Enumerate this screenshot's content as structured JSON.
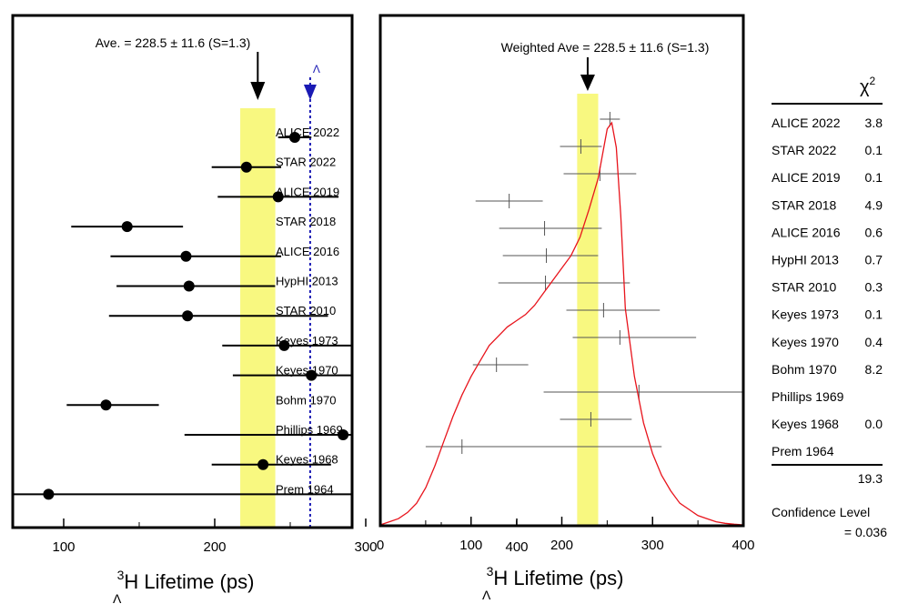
{
  "chart_data": [
    {
      "type": "scatter",
      "annotation": "Ave. = 228.5 ± 11.6 (S=1.3)",
      "marker_label": "Λ",
      "average": 228.5,
      "average_err": 11.6,
      "free_lifetime": 263.2,
      "xlim": [
        20,
        400
      ],
      "x_ticks": [
        100,
        200,
        300,
        400
      ],
      "xlabel_sup": "3",
      "xlabel_sub": "Λ",
      "xlabel_main": "H Lifetime (ps)",
      "points": [
        {
          "label": "ALICE 2022",
          "value": 253,
          "err_lo": 11,
          "err_hi": 11
        },
        {
          "label": "STAR 2022",
          "value": 221,
          "err_lo": 23,
          "err_hi": 23
        },
        {
          "label": "ALICE 2019",
          "value": 242,
          "err_lo": 40,
          "err_hi": 40
        },
        {
          "label": "STAR 2018",
          "value": 142,
          "err_lo": 37,
          "err_hi": 37
        },
        {
          "label": "ALICE 2016",
          "value": 181,
          "err_lo": 50,
          "err_hi": 63
        },
        {
          "label": "HypHI 2013",
          "value": 183,
          "err_lo": 48,
          "err_hi": 57
        },
        {
          "label": "STAR 2010",
          "value": 182,
          "err_lo": 52,
          "err_hi": 93
        },
        {
          "label": "Keyes 1973",
          "value": 246,
          "err_lo": 41,
          "err_hi": 62
        },
        {
          "label": "Keyes 1970",
          "value": 264,
          "err_lo": 52,
          "err_hi": 84
        },
        {
          "label": "Bohm 1970",
          "value": 128,
          "err_lo": 26,
          "err_hi": 35
        },
        {
          "label": "Phillips 1969",
          "value": 285,
          "err_lo": 105,
          "err_hi": 127
        },
        {
          "label": "Keyes 1968",
          "value": 232,
          "err_lo": 34,
          "err_hi": 45
        },
        {
          "label": "Prem 1964",
          "value": 90,
          "err_lo": 40,
          "err_hi": 220
        }
      ]
    },
    {
      "type": "line",
      "annotation": "Weighted Ave = 228.5 ± 11.6 (S=1.3)",
      "xlim": [
        0,
        400
      ],
      "x_ticks": [
        0,
        100,
        200,
        300,
        400
      ],
      "xlabel_sup": "3",
      "xlabel_sub": "Λ",
      "xlabel_main": "H Lifetime (ps)",
      "ideogram": {
        "x": [
          0,
          10,
          20,
          30,
          40,
          50,
          60,
          70,
          80,
          90,
          100,
          110,
          120,
          130,
          140,
          150,
          160,
          170,
          180,
          190,
          200,
          210,
          220,
          230,
          240,
          245,
          250,
          255,
          260,
          265,
          270,
          280,
          290,
          300,
          310,
          320,
          330,
          340,
          350,
          360,
          370,
          380,
          390,
          400
        ],
        "y": [
          0.0,
          0.01,
          0.02,
          0.04,
          0.07,
          0.12,
          0.19,
          0.27,
          0.35,
          0.42,
          0.48,
          0.53,
          0.58,
          0.61,
          0.64,
          0.66,
          0.68,
          0.71,
          0.75,
          0.79,
          0.83,
          0.87,
          0.93,
          1.02,
          1.12,
          1.2,
          1.28,
          1.3,
          1.22,
          1.0,
          0.7,
          0.48,
          0.33,
          0.23,
          0.16,
          0.11,
          0.07,
          0.05,
          0.03,
          0.02,
          0.01,
          0.005,
          0.002,
          0.0
        ]
      },
      "error_bars": [
        {
          "value": 253,
          "err_lo": 11,
          "err_hi": 11
        },
        {
          "value": 221,
          "err_lo": 23,
          "err_hi": 23
        },
        {
          "value": 242,
          "err_lo": 40,
          "err_hi": 40
        },
        {
          "value": 142,
          "err_lo": 37,
          "err_hi": 37
        },
        {
          "value": 181,
          "err_lo": 50,
          "err_hi": 63
        },
        {
          "value": 183,
          "err_lo": 48,
          "err_hi": 57
        },
        {
          "value": 182,
          "err_lo": 52,
          "err_hi": 93
        },
        {
          "value": 246,
          "err_lo": 41,
          "err_hi": 62
        },
        {
          "value": 264,
          "err_lo": 52,
          "err_hi": 84
        },
        {
          "value": 128,
          "err_lo": 26,
          "err_hi": 35
        },
        {
          "value": 285,
          "err_lo": 105,
          "err_hi": 127
        },
        {
          "value": 232,
          "err_lo": 34,
          "err_hi": 45
        },
        {
          "value": 90,
          "err_lo": 40,
          "err_hi": 220
        }
      ]
    },
    {
      "type": "table",
      "header": "χ",
      "header_sup": "2",
      "rows": [
        {
          "label": "ALICE 2022",
          "chi2": "3.8"
        },
        {
          "label": "STAR 2022",
          "chi2": "0.1"
        },
        {
          "label": "ALICE 2019",
          "chi2": "0.1"
        },
        {
          "label": "STAR 2018",
          "chi2": "4.9"
        },
        {
          "label": "ALICE 2016",
          "chi2": "0.6"
        },
        {
          "label": "HypHI 2013",
          "chi2": "0.7"
        },
        {
          "label": "STAR 2010",
          "chi2": "0.3"
        },
        {
          "label": "Keyes 1973",
          "chi2": "0.1"
        },
        {
          "label": "Keyes 1970",
          "chi2": "0.4"
        },
        {
          "label": "Bohm 1970",
          "chi2": "8.2"
        },
        {
          "label": "Phillips 1969",
          "chi2": ""
        },
        {
          "label": "Keyes 1968",
          "chi2": "0.0"
        },
        {
          "label": "Prem 1964",
          "chi2": ""
        }
      ],
      "total": "19.3",
      "confidence_label": "Confidence Level",
      "confidence_value": "= 0.036"
    }
  ],
  "colors": {
    "band": "#f8f880",
    "curve": "#e8141c",
    "dashed": "#1a1ab4",
    "ink": "#000000",
    "thin": "#555555"
  }
}
